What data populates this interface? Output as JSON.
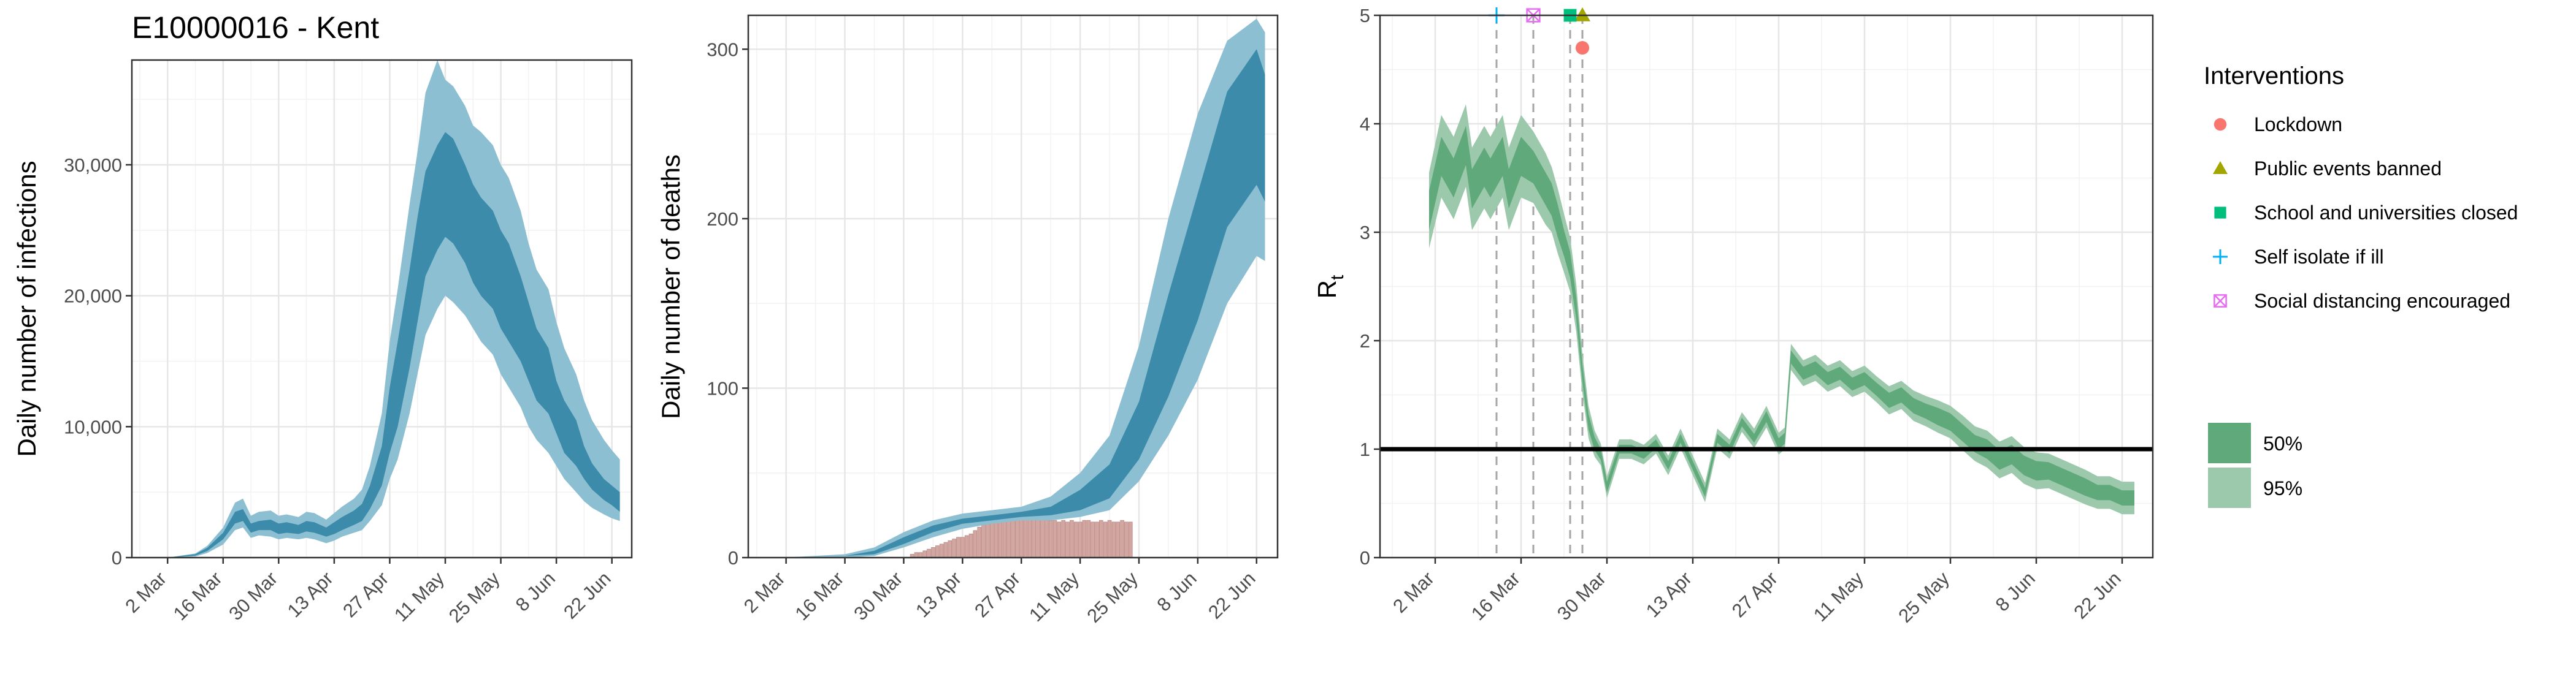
{
  "chart_data": [
    {
      "type": "area",
      "title": "E10000016 - Kent",
      "xlabel": "",
      "ylabel": "Daily number of infections",
      "x_ticks": [
        "2 Mar",
        "16 Mar",
        "30 Mar",
        "13 Apr",
        "27 Apr",
        "11 May",
        "25 May",
        "8 Jun",
        "22 Jun"
      ],
      "y_ticks": [
        "0",
        "10,000",
        "20,000",
        "30,000"
      ],
      "ylim": [
        0,
        38000
      ],
      "xlim_days": [
        -9,
        117
      ],
      "grid": true,
      "colors": {
        "band95": "#8cbfd1",
        "band50": "#3d8bab",
        "line": "#2f7c9c"
      },
      "series": [
        {
          "x_days": [
            0,
            7,
            10,
            14,
            17,
            19,
            21,
            23,
            26,
            28,
            30,
            33,
            35,
            37,
            40,
            42,
            44,
            47,
            49,
            51,
            54,
            56,
            58,
            61,
            63,
            65,
            68,
            70,
            72,
            75,
            77,
            79,
            82,
            84,
            86,
            89,
            91,
            93,
            96,
            98,
            100,
            103,
            105,
            107,
            110,
            112,
            114
          ],
          "median": [
            0,
            200,
            600,
            1600,
            3000,
            3200,
            2200,
            2400,
            2500,
            2200,
            2300,
            2100,
            2400,
            2300,
            1900,
            2200,
            2600,
            3000,
            3400,
            4500,
            7000,
            10500,
            13000,
            18000,
            22000,
            25500,
            27500,
            28500,
            28000,
            26000,
            24500,
            23500,
            22500,
            21000,
            20000,
            18000,
            16000,
            14500,
            13500,
            11500,
            10000,
            8500,
            7000,
            6000,
            5000,
            4500,
            4000
          ],
          "lo50": [
            0,
            150,
            500,
            1400,
            2600,
            2800,
            1900,
            2100,
            2100,
            1800,
            1900,
            1800,
            2000,
            1900,
            1600,
            1800,
            2100,
            2500,
            2800,
            3700,
            5500,
            8000,
            10000,
            14500,
            18000,
            21500,
            23500,
            24500,
            24000,
            22500,
            21000,
            20000,
            19000,
            17500,
            16500,
            15000,
            13500,
            12000,
            11000,
            9500,
            8000,
            7000,
            6000,
            5200,
            4400,
            4000,
            3500
          ],
          "hi50": [
            0,
            260,
            750,
            1900,
            3500,
            3700,
            2600,
            2800,
            2900,
            2600,
            2700,
            2500,
            2800,
            2700,
            2300,
            2700,
            3100,
            3600,
            4100,
            5500,
            8500,
            13000,
            16500,
            22000,
            26000,
            29500,
            31500,
            32500,
            32000,
            30000,
            28500,
            27500,
            26500,
            25000,
            24000,
            21500,
            19500,
            17500,
            16000,
            13500,
            12000,
            10500,
            8500,
            7200,
            6000,
            5500,
            5000
          ],
          "lo95": [
            0,
            80,
            350,
            1000,
            2100,
            2300,
            1500,
            1700,
            1600,
            1400,
            1500,
            1400,
            1500,
            1400,
            1100,
            1300,
            1600,
            1900,
            2100,
            2800,
            4000,
            6000,
            7500,
            11000,
            14000,
            17000,
            19000,
            20000,
            19500,
            18500,
            17500,
            16500,
            15500,
            14000,
            13000,
            11500,
            10000,
            9000,
            8000,
            7000,
            6000,
            5000,
            4300,
            3800,
            3300,
            3000,
            2800
          ],
          "hi95": [
            0,
            320,
            900,
            2300,
            4200,
            4500,
            3200,
            3500,
            3600,
            3200,
            3300,
            3100,
            3500,
            3400,
            2900,
            3400,
            3900,
            4500,
            5200,
            7000,
            11000,
            16500,
            20500,
            27000,
            31000,
            35500,
            38000,
            36500,
            36000,
            34500,
            33000,
            32500,
            31500,
            30000,
            29000,
            26500,
            24000,
            22000,
            20500,
            18000,
            16000,
            14000,
            12000,
            10500,
            9000,
            8200,
            7500
          ]
        }
      ]
    },
    {
      "type": "area",
      "title": "",
      "xlabel": "",
      "ylabel": "Daily number of deaths",
      "x_ticks": [
        "2 Mar",
        "16 Mar",
        "30 Mar",
        "13 Apr",
        "27 Apr",
        "11 May",
        "25 May",
        "8 Jun",
        "22 Jun"
      ],
      "y_ticks": [
        "0",
        "100",
        "200",
        "300"
      ],
      "ylim": [
        0,
        320
      ],
      "xlim_days": [
        -9,
        117
      ],
      "grid": true,
      "colors": {
        "band95": "#8cbfd1",
        "band50": "#3d8bab",
        "line": "#2f7c9c",
        "bars": "#d3a6a1"
      },
      "observed_deaths": {
        "x_days": [
          30,
          31,
          32,
          33,
          34,
          35,
          36,
          37,
          38,
          39,
          40,
          41,
          42,
          43,
          44,
          45,
          46,
          47,
          48,
          49,
          50,
          51,
          52,
          53,
          54,
          55,
          56,
          57,
          58,
          59,
          60,
          61,
          62,
          63,
          64,
          65,
          66,
          67,
          68,
          69,
          70,
          71,
          72,
          73,
          74,
          75,
          76,
          77,
          78,
          79,
          80,
          81,
          82
        ],
        "values": [
          2,
          3,
          3,
          4,
          5,
          6,
          7,
          8,
          9,
          10,
          11,
          12,
          12,
          13,
          14,
          16,
          18,
          20,
          26,
          27,
          28,
          28,
          27,
          28,
          28,
          27,
          28,
          27,
          24,
          24,
          23,
          23,
          24,
          22,
          22,
          21,
          22,
          21,
          22,
          21,
          21,
          22,
          22,
          21,
          21,
          22,
          21,
          22,
          21,
          21,
          22,
          21,
          21
        ]
      },
      "series": [
        {
          "x_days": [
            -1,
            14,
            21,
            28,
            35,
            42,
            49,
            56,
            63,
            70,
            77,
            84,
            91,
            98,
            105,
            112,
            114
          ],
          "median": [
            0,
            1,
            3,
            10,
            17,
            21,
            23,
            25,
            27,
            33,
            44,
            75,
            125,
            180,
            245,
            265,
            250
          ],
          "lo50": [
            0,
            1,
            2,
            8,
            15,
            20,
            22,
            24,
            25,
            28,
            35,
            58,
            95,
            140,
            195,
            220,
            210
          ],
          "hi50": [
            0,
            1,
            4,
            12,
            19,
            23,
            25,
            27,
            30,
            40,
            55,
            92,
            155,
            215,
            275,
            300,
            285
          ],
          "lo95": [
            0,
            0,
            1,
            6,
            12,
            17,
            20,
            22,
            22,
            24,
            28,
            45,
            72,
            105,
            150,
            178,
            175
          ],
          "hi95": [
            0,
            2,
            6,
            15,
            22,
            26,
            28,
            30,
            36,
            50,
            72,
            125,
            200,
            262,
            305,
            318,
            310
          ]
        }
      ]
    },
    {
      "type": "area",
      "title": "",
      "xlabel": "",
      "ylabel": "Rt",
      "x_ticks": [
        "2 Mar",
        "16 Mar",
        "30 Mar",
        "13 Apr",
        "27 Apr",
        "11 May",
        "25 May",
        "8 Jun",
        "22 Jun"
      ],
      "y_ticks": [
        "0",
        "1",
        "2",
        "3",
        "4",
        "5"
      ],
      "ylim": [
        0,
        5
      ],
      "xlim_days": [
        -9,
        117
      ],
      "grid": true,
      "reference_line": 1,
      "colors": {
        "band95": "#9cc8ab",
        "band50": "#5fa97a",
        "line": "#3e8f5f",
        "ref": "#000000"
      },
      "intervention_days": [
        10,
        16,
        22,
        24
      ],
      "interventions": [
        {
          "label": "Lockdown",
          "day": 24,
          "y": 4.7,
          "shape": "circle",
          "color": "#f8766d"
        },
        {
          "label": "Public events banned",
          "day": 24,
          "y": 5.0,
          "shape": "triangle",
          "color": "#a3a500"
        },
        {
          "label": "School and universities closed",
          "day": 22,
          "y": 5.0,
          "shape": "square",
          "color": "#00bf7d"
        },
        {
          "label": "Self isolate if ill",
          "day": 10,
          "y": 5.0,
          "shape": "plus",
          "color": "#00b0f6"
        },
        {
          "label": "Social distancing encouraged",
          "day": 16,
          "y": 5.0,
          "shape": "boxx",
          "color": "#e76bf3"
        }
      ],
      "series": [
        {
          "x_days": [
            -1,
            1,
            3,
            5,
            6,
            8,
            9,
            11,
            12,
            14,
            16,
            18,
            19,
            20,
            21,
            22,
            23,
            24,
            25,
            26,
            27,
            28,
            30,
            32,
            34,
            36,
            38,
            40,
            42,
            44,
            46,
            48,
            50,
            52,
            54,
            56,
            57,
            58,
            60,
            62,
            64,
            66,
            68,
            70,
            72,
            74,
            76,
            78,
            80,
            82,
            84,
            86,
            88,
            90,
            92,
            94,
            96,
            98,
            100,
            102,
            104,
            106,
            108,
            110,
            112,
            114
          ],
          "median": [
            3.2,
            3.7,
            3.5,
            3.8,
            3.4,
            3.6,
            3.5,
            3.7,
            3.4,
            3.7,
            3.6,
            3.4,
            3.3,
            3.1,
            2.9,
            2.7,
            2.3,
            1.7,
            1.25,
            1.05,
            0.95,
            0.65,
            1.0,
            1.0,
            0.95,
            1.05,
            0.85,
            1.1,
            0.85,
            0.6,
            1.1,
            1.0,
            1.25,
            1.1,
            1.3,
            1.05,
            1.1,
            1.85,
            1.7,
            1.75,
            1.65,
            1.7,
            1.6,
            1.65,
            1.55,
            1.45,
            1.5,
            1.4,
            1.35,
            1.3,
            1.25,
            1.15,
            1.05,
            1.0,
            0.9,
            0.95,
            0.85,
            0.8,
            0.8,
            0.75,
            0.7,
            0.65,
            0.6,
            0.6,
            0.55,
            0.55
          ],
          "half50": [
            0.18,
            0.18,
            0.18,
            0.18,
            0.18,
            0.18,
            0.18,
            0.18,
            0.18,
            0.18,
            0.15,
            0.15,
            0.15,
            0.15,
            0.12,
            0.12,
            0.1,
            0.08,
            0.07,
            0.06,
            0.05,
            0.05,
            0.04,
            0.04,
            0.04,
            0.04,
            0.04,
            0.04,
            0.04,
            0.04,
            0.04,
            0.04,
            0.04,
            0.04,
            0.05,
            0.05,
            0.05,
            0.06,
            0.06,
            0.06,
            0.06,
            0.06,
            0.06,
            0.06,
            0.06,
            0.07,
            0.07,
            0.07,
            0.07,
            0.08,
            0.08,
            0.08,
            0.08,
            0.09,
            0.09,
            0.09,
            0.09,
            0.09,
            0.08,
            0.08,
            0.08,
            0.08,
            0.07,
            0.07,
            0.07,
            0.07
          ],
          "half95": [
            0.35,
            0.38,
            0.38,
            0.38,
            0.38,
            0.38,
            0.38,
            0.38,
            0.38,
            0.38,
            0.33,
            0.33,
            0.3,
            0.3,
            0.27,
            0.25,
            0.22,
            0.18,
            0.15,
            0.12,
            0.1,
            0.1,
            0.09,
            0.09,
            0.09,
            0.09,
            0.09,
            0.09,
            0.09,
            0.09,
            0.09,
            0.09,
            0.09,
            0.09,
            0.1,
            0.1,
            0.1,
            0.12,
            0.12,
            0.12,
            0.12,
            0.12,
            0.12,
            0.12,
            0.12,
            0.13,
            0.13,
            0.14,
            0.14,
            0.15,
            0.15,
            0.16,
            0.16,
            0.17,
            0.17,
            0.17,
            0.17,
            0.17,
            0.16,
            0.16,
            0.16,
            0.16,
            0.15,
            0.15,
            0.15,
            0.15
          ]
        }
      ]
    }
  ],
  "legend": {
    "interventions_title": "Interventions",
    "interventions": [
      "Lockdown",
      "Public events banned",
      "School and universities closed",
      "Self isolate if ill",
      "Social distancing encouraged"
    ],
    "ci_labels": [
      "50%",
      "95%"
    ]
  },
  "panel_ylabels": {
    "rt_main": "R",
    "rt_sub": "t"
  }
}
